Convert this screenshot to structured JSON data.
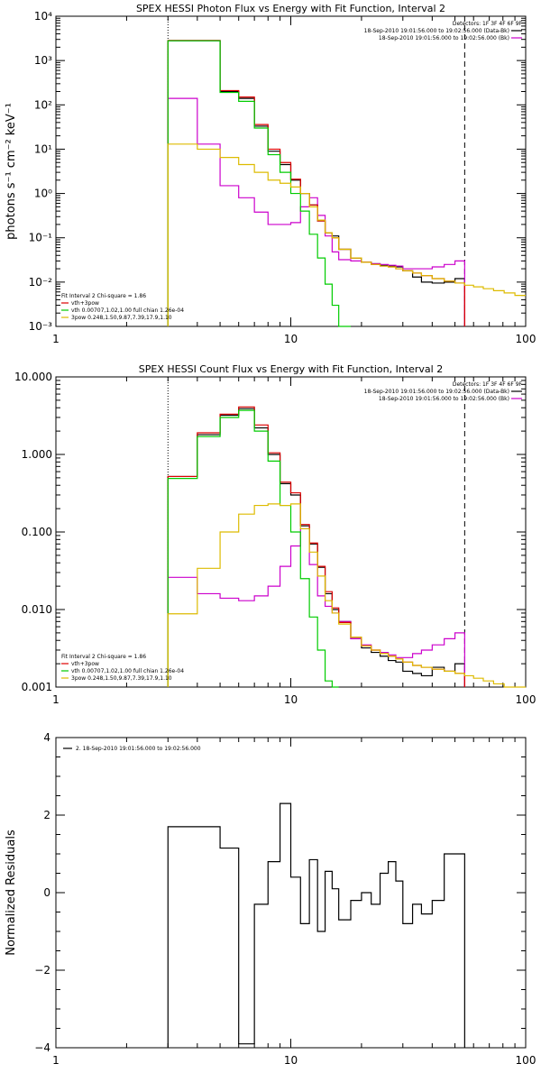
{
  "chart_data": [
    {
      "type": "line",
      "title": "SPEX HESSI Photon Flux vs Energy with Fit Function, Interval 2",
      "xlabel": "",
      "ylabel": "photons s⁻¹ cm⁻² keV⁻¹",
      "xscale": "log",
      "yscale": "log",
      "xlim": [
        1,
        100
      ],
      "ylim": [
        0.001,
        10000
      ],
      "xtick_labels": [
        "1",
        "10",
        "100"
      ],
      "ytick_labels": [
        "10⁻³",
        "10⁻²",
        "10⁻¹",
        "10⁰",
        "10¹",
        "10²",
        "10³",
        "10⁴"
      ],
      "vlines": [
        {
          "x": 3.0,
          "style": "dotted"
        },
        {
          "x": 55.0,
          "style": "dashed"
        }
      ],
      "legend_top": {
        "placement": "top-right",
        "title": "Detectors: 1F 3F 4F 6F 9F",
        "entries": [
          {
            "text": "18-Sep-2010 19:01:56.000 to 19:02:56.000 (Data-Bk)",
            "color": "#000000"
          },
          {
            "text": "18-Sep-2010 19:01:56.000 to 19:02:56.000 (Bk)",
            "color": "#cc00cc"
          }
        ]
      },
      "legend_bottom": {
        "placement": "bottom-left",
        "title": "Fit Interval 2   Chi-square = 1.86",
        "entries": [
          {
            "text": "vth+3pow",
            "color": "#dd0000"
          },
          {
            "text": "vth 0.00707,1.02,1.00  full chian 1.26e-04",
            "color": "#00cc00"
          },
          {
            "text": "3pow 0.248,1.50,9.87,7.39,17.9,1.10",
            "color": "#ddbb00"
          }
        ]
      },
      "edges": [
        3.0,
        4.0,
        5.0,
        6.0,
        7.0,
        8.0,
        9.0,
        10.0,
        11.0,
        12.0,
        13.0,
        14.0,
        15.0,
        16.0,
        18.0,
        20.0,
        22.0,
        24.0,
        26.0,
        28.0,
        30.0,
        33.0,
        36.0,
        40.0,
        45.0,
        50.0,
        55.0
      ],
      "series": [
        {
          "name": "Data-Bk",
          "color": "#000000",
          "values": [
            2800,
            2800,
            200,
            140,
            33,
            9,
            4.5,
            2.0,
            1.0,
            0.55,
            0.24,
            0.13,
            0.11,
            0.055,
            0.035,
            0.028,
            0.026,
            0.024,
            0.023,
            0.022,
            0.018,
            0.013,
            0.01,
            0.0095,
            0.01,
            0.012
          ]
        },
        {
          "name": "Bk",
          "color": "#cc00cc",
          "values": [
            140,
            13,
            1.5,
            0.8,
            0.38,
            0.2,
            0.2,
            0.22,
            0.5,
            0.8,
            0.32,
            0.11,
            0.048,
            0.032,
            0.03,
            0.028,
            0.026,
            0.025,
            0.024,
            0.023,
            0.02,
            0.02,
            0.02,
            0.022,
            0.025,
            0.03
          ]
        },
        {
          "name": "vth+3pow",
          "color": "#dd0000",
          "values": [
            2850,
            2850,
            210,
            150,
            36,
            10,
            5.0,
            2.1,
            1.0,
            0.55,
            0.24,
            0.13,
            0.1,
            0.055,
            0.035,
            0.028,
            0.025,
            0.023,
            0.022,
            0.02,
            0.018,
            0.016,
            0.014,
            0.012,
            0.0105,
            0.0095
          ]
        },
        {
          "name": "vth",
          "color": "#00cc00",
          "values": [
            2800,
            2800,
            190,
            120,
            30,
            7.5,
            3.0,
            1.0,
            0.4,
            0.12,
            0.035,
            0.009,
            0.003,
            0.0008
          ]
        },
        {
          "name": "3pow",
          "color": "#ddbb00",
          "values": [
            13,
            10,
            6.5,
            4.5,
            3.0,
            2.0,
            1.7,
            1.4,
            1.0,
            0.5,
            0.25,
            0.13,
            0.1,
            0.055,
            0.035,
            0.028,
            0.025,
            0.023,
            0.022,
            0.02,
            0.018,
            0.016,
            0.014,
            0.012,
            0.0105,
            0.0095,
            0.0085,
            0.0078,
            0.0071,
            0.0064,
            0.0057,
            0.005
          ]
        }
      ],
      "extra_edges_3pow": [
        55.0,
        60.0,
        66.0,
        73.0,
        81.0,
        90.0,
        100.0
      ]
    },
    {
      "type": "line",
      "title": "SPEX HESSI Count Flux vs Energy with Fit Function, Interval 2",
      "xlabel": "",
      "ylabel": "",
      "xscale": "log",
      "yscale": "log",
      "xlim": [
        1,
        100
      ],
      "ylim": [
        0.001,
        10.0
      ],
      "xtick_labels": [
        "1",
        "10",
        "100"
      ],
      "ytick_labels": [
        "0.001",
        "0.010",
        "0.100",
        "1.000",
        "10.000"
      ],
      "vlines": [
        {
          "x": 3.0,
          "style": "dotted"
        },
        {
          "x": 55.0,
          "style": "dashed"
        }
      ],
      "legend_top": {
        "placement": "top-right",
        "title": "Detectors: 1F 3F 4F 6F 9F",
        "entries": [
          {
            "text": "18-Sep-2010 19:01:56.000 to 19:02:56.000 (Data-Bk)",
            "color": "#000000"
          },
          {
            "text": "18-Sep-2010 19:01:56.000 to 19:02:56.000 (Bk)",
            "color": "#cc00cc"
          }
        ]
      },
      "legend_bottom": {
        "placement": "bottom-left",
        "title": "Fit Interval 2   Chi-square = 1.86",
        "entries": [
          {
            "text": "vth+3pow",
            "color": "#dd0000"
          },
          {
            "text": "vth 0.00707,1.02,1.00  full chian 1.26e-04",
            "color": "#00cc00"
          },
          {
            "text": "3pow 0.248,1.50,9.87,7.39,17.9,1.10",
            "color": "#ddbb00"
          }
        ]
      },
      "edges": [
        3.0,
        4.0,
        5.0,
        6.0,
        7.0,
        8.0,
        9.0,
        10.0,
        11.0,
        12.0,
        13.0,
        14.0,
        15.0,
        16.0,
        18.0,
        20.0,
        22.0,
        24.0,
        26.0,
        28.0,
        30.0,
        33.0,
        36.0,
        40.0,
        45.0,
        50.0,
        55.0
      ],
      "series": [
        {
          "name": "Data-Bk",
          "color": "#000000",
          "values": [
            0.52,
            1.8,
            3.2,
            3.9,
            2.2,
            1.0,
            0.42,
            0.3,
            0.12,
            0.07,
            0.035,
            0.016,
            0.01,
            0.007,
            0.0042,
            0.0032,
            0.0028,
            0.0025,
            0.0022,
            0.0021,
            0.0016,
            0.0015,
            0.0014,
            0.0018,
            0.0016,
            0.002
          ]
        },
        {
          "name": "Bk",
          "color": "#cc00cc",
          "values": [
            0.026,
            0.016,
            0.014,
            0.013,
            0.015,
            0.02,
            0.036,
            0.066,
            0.11,
            0.038,
            0.015,
            0.011,
            0.009,
            0.007,
            0.0042,
            0.0035,
            0.003,
            0.0028,
            0.0026,
            0.0024,
            0.0024,
            0.0027,
            0.003,
            0.0035,
            0.0042,
            0.005
          ]
        },
        {
          "name": "vth+3pow",
          "color": "#dd0000",
          "values": [
            0.52,
            1.9,
            3.3,
            4.1,
            2.4,
            1.05,
            0.44,
            0.32,
            0.125,
            0.072,
            0.036,
            0.017,
            0.0105,
            0.0068,
            0.0044,
            0.0034,
            0.003,
            0.0027,
            0.0025,
            0.0023,
            0.0021,
            0.0019,
            0.0018,
            0.0017,
            0.0016,
            0.0015
          ]
        },
        {
          "name": "vth",
          "color": "#00cc00",
          "values": [
            0.49,
            1.7,
            3.0,
            3.7,
            2.0,
            0.82,
            0.22,
            0.1,
            0.025,
            0.008,
            0.003,
            0.0012,
            0.0006
          ]
        },
        {
          "name": "3pow",
          "color": "#ddbb00",
          "values": [
            0.0088,
            0.034,
            0.1,
            0.17,
            0.22,
            0.23,
            0.22,
            0.23,
            0.11,
            0.055,
            0.027,
            0.013,
            0.009,
            0.0065,
            0.0044,
            0.0034,
            0.003,
            0.0027,
            0.0025,
            0.0023,
            0.0021,
            0.0019,
            0.0018,
            0.0017,
            0.0016,
            0.0015,
            0.0014,
            0.0013,
            0.0012,
            0.0011,
            0.001,
            0.0009
          ]
        }
      ],
      "extra_edges_3pow": [
        55.0,
        60.0,
        66.0,
        73.0,
        81.0,
        90.0,
        100.0
      ]
    },
    {
      "type": "line",
      "title": "",
      "xlabel": "",
      "ylabel": "Normalized Residuals",
      "xscale": "log",
      "yscale": "linear",
      "xlim": [
        1,
        100
      ],
      "ylim": [
        -4,
        4
      ],
      "xtick_labels": [
        "1",
        "10",
        "100"
      ],
      "ytick_labels": [
        "−4",
        "−2",
        "0",
        "2",
        "4"
      ],
      "legend_top": {
        "placement": "top-left",
        "entries": [
          {
            "text": "2. 18-Sep-2010 19:01:56.000 to 19:02:56.000",
            "color": "#000000"
          }
        ]
      },
      "edges": [
        3.0,
        4.0,
        5.0,
        6.0,
        7.0,
        8.0,
        9.0,
        10.0,
        11.0,
        12.0,
        13.0,
        14.0,
        15.0,
        16.0,
        18.0,
        20.0,
        22.0,
        24.0,
        26.0,
        28.0,
        30.0,
        33.0,
        36.0,
        40.0,
        45.0,
        50.0,
        55.0
      ],
      "series": [
        {
          "name": "residuals",
          "color": "#000000",
          "values": [
            1.7,
            1.7,
            1.15,
            -3.9,
            -0.3,
            0.8,
            2.3,
            0.4,
            -0.8,
            0.85,
            -1.0,
            0.55,
            0.1,
            -0.7,
            -0.2,
            0.0,
            -0.3,
            0.5,
            0.8,
            0.3,
            -0.8,
            -0.3,
            -0.55,
            -0.2,
            1.0,
            1.0
          ]
        }
      ]
    }
  ]
}
